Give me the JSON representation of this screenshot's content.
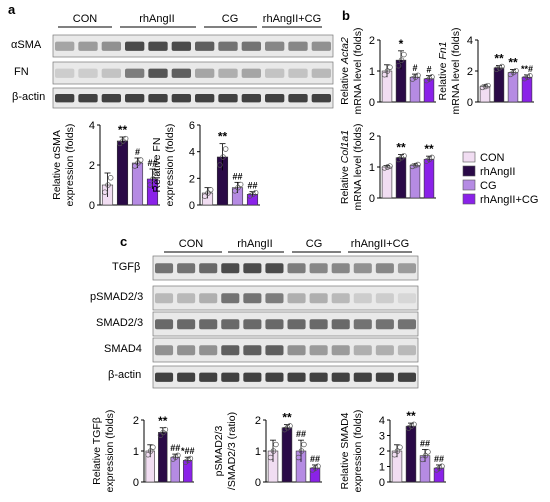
{
  "panel_labels": {
    "a": "a",
    "b": "b",
    "c": "c"
  },
  "groups": [
    "CON",
    "rhAngII",
    "CG",
    "rhAngII+CG"
  ],
  "colors": {
    "CON": "#f1ddf2",
    "rhAngII": "#2a0a47",
    "CG": "#b58be3",
    "rhAngII+CG": "#8a22e8"
  },
  "blots_a": [
    "αSMA",
    "FN",
    "β-actin"
  ],
  "blots_c": [
    "TGFβ",
    "pSMAD2/3",
    "SMAD2/3",
    "SMAD4",
    "β-actin"
  ],
  "chart_data": [
    {
      "id": "a_sma",
      "type": "bar",
      "categories": [
        "CON",
        "rhAngII",
        "CG",
        "rhAngII+CG"
      ],
      "values": [
        1.0,
        3.2,
        2.1,
        1.3
      ],
      "errors": [
        0.6,
        0.2,
        0.25,
        0.5
      ],
      "ylim": [
        0,
        4
      ],
      "yticks": [
        0,
        2,
        4
      ],
      "ylabel": [
        "Relative αSMA",
        "expression (folds)"
      ],
      "annotations": [
        "",
        "**",
        "#",
        "##"
      ]
    },
    {
      "id": "a_fn",
      "type": "bar",
      "categories": [
        "CON",
        "rhAngII",
        "CG",
        "rhAngII+CG"
      ],
      "values": [
        0.9,
        3.6,
        1.3,
        0.8
      ],
      "errors": [
        0.4,
        1.0,
        0.4,
        0.2
      ],
      "ylim": [
        0,
        6
      ],
      "yticks": [
        0,
        2,
        4,
        6
      ],
      "ylabel": [
        "Relative FN",
        "expression (folds)"
      ],
      "annotations": [
        "",
        "**",
        "##",
        "##"
      ]
    },
    {
      "id": "b_acta2",
      "type": "bar",
      "categories": [
        "CON",
        "rhAngII",
        "CG",
        "rhAngII+CG"
      ],
      "values": [
        1.0,
        1.35,
        0.8,
        0.75
      ],
      "errors": [
        0.2,
        0.3,
        0.1,
        0.1
      ],
      "ylim": [
        0,
        2
      ],
      "yticks": [
        0,
        1,
        2
      ],
      "ylabel": [
        "Relative Acta2",
        "mRNA level (folds)"
      ],
      "annotations": [
        "",
        "*",
        "#",
        "#"
      ]
    },
    {
      "id": "b_fn1",
      "type": "bar",
      "categories": [
        "CON",
        "rhAngII",
        "CG",
        "rhAngII+CG"
      ],
      "values": [
        1.0,
        2.2,
        1.9,
        1.6
      ],
      "errors": [
        0.1,
        0.15,
        0.2,
        0.15
      ],
      "ylim": [
        0,
        4
      ],
      "yticks": [
        0,
        2,
        4
      ],
      "ylabel": [
        "Relative Fn1",
        "mRNA level (folds)"
      ],
      "annotations": [
        "",
        "**",
        "**",
        "**#"
      ]
    },
    {
      "id": "b_col1a1",
      "type": "bar",
      "categories": [
        "CON",
        "rhAngII",
        "CG",
        "rhAngII+CG"
      ],
      "values": [
        1.0,
        1.3,
        1.05,
        1.25
      ],
      "errors": [
        0.05,
        0.1,
        0.05,
        0.1
      ],
      "ylim": [
        0,
        2
      ],
      "yticks": [
        0,
        1,
        2
      ],
      "ylabel": [
        "Relative Col1a1",
        "mRNA level (folds)"
      ],
      "annotations": [
        "",
        "**",
        "",
        "**"
      ]
    },
    {
      "id": "c_tgfb",
      "type": "bar",
      "categories": [
        "CON",
        "rhAngII",
        "CG",
        "rhAngII+CG"
      ],
      "values": [
        1.0,
        1.6,
        0.8,
        0.7
      ],
      "errors": [
        0.2,
        0.15,
        0.1,
        0.1
      ],
      "ylim": [
        0,
        2
      ],
      "yticks": [
        0,
        1,
        2
      ],
      "ylabel": [
        "Relative TGFβ",
        "expression (folds)"
      ],
      "annotations": [
        "",
        "**",
        "##",
        "*##"
      ]
    },
    {
      "id": "c_psmad",
      "type": "bar",
      "categories": [
        "CON",
        "rhAngII",
        "CG",
        "rhAngII+CG"
      ],
      "values": [
        1.0,
        1.75,
        1.0,
        0.45
      ],
      "errors": [
        0.35,
        0.1,
        0.35,
        0.1
      ],
      "ylim": [
        0,
        2
      ],
      "yticks": [
        0,
        1,
        2
      ],
      "ylabel": [
        "pSMAD2/3",
        "/SMAD2/3 (ratio)"
      ],
      "annotations": [
        "",
        "**",
        "##",
        "##"
      ]
    },
    {
      "id": "c_smad4",
      "type": "bar",
      "categories": [
        "CON",
        "rhAngII",
        "CG",
        "rhAngII+CG"
      ],
      "values": [
        2.0,
        3.6,
        1.7,
        0.9
      ],
      "errors": [
        0.4,
        0.2,
        0.4,
        0.2
      ],
      "ylim": [
        0,
        4
      ],
      "yticks": [
        0,
        1,
        2,
        3,
        4
      ],
      "ylabel": [
        "Relative SMAD4",
        "expression (folds)"
      ],
      "annotations": [
        "",
        "**",
        "##",
        "##"
      ]
    }
  ]
}
